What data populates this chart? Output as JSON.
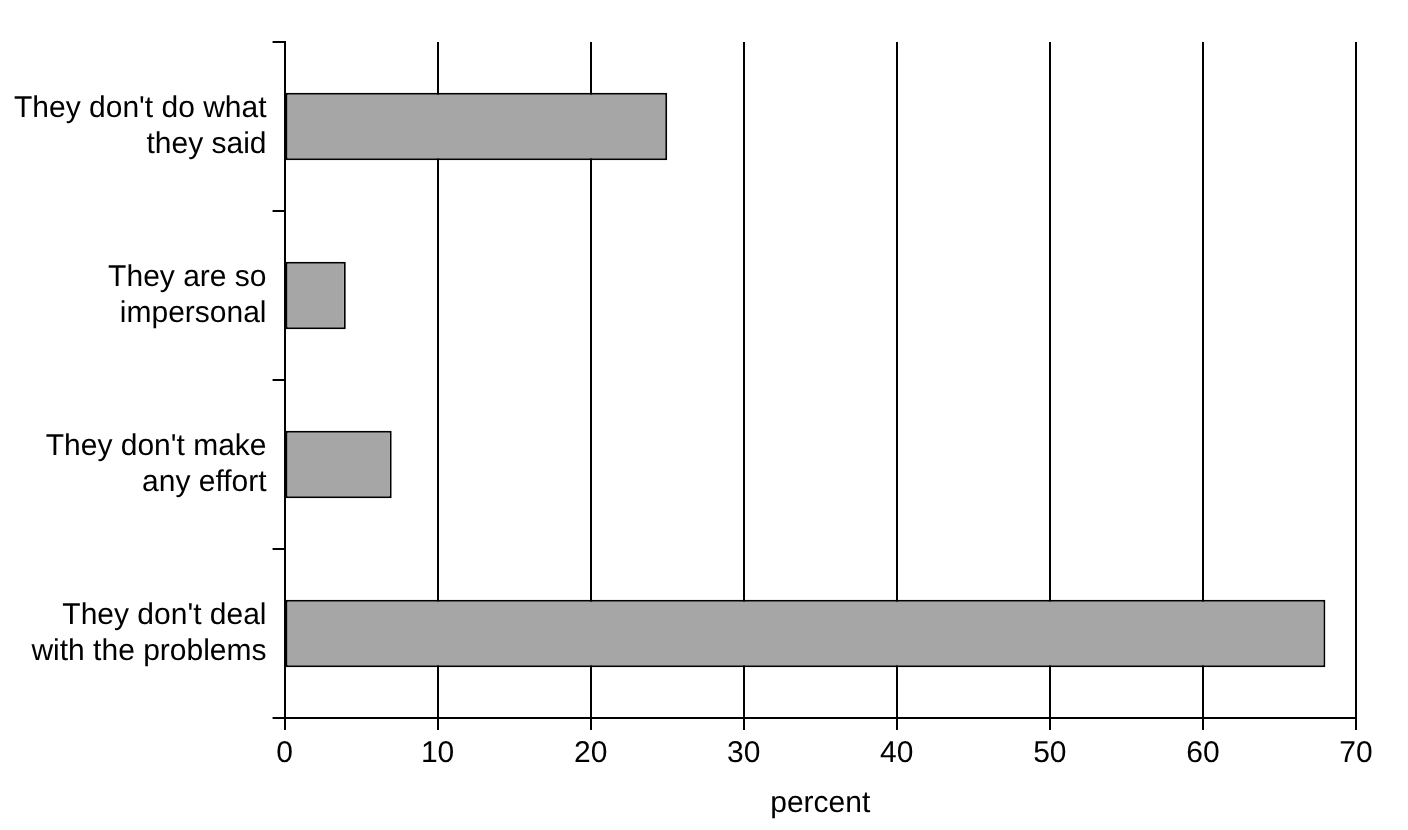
{
  "chart_data": {
    "type": "bar",
    "orientation": "horizontal",
    "categories": [
      "They don't do what they said",
      "They are so impersonal",
      "They don't make any effort",
      "They don't deal with the problems"
    ],
    "values": [
      25,
      4,
      7,
      68
    ],
    "color": "#a6a6a6",
    "xlabel": "percent",
    "xlim": [
      0,
      70
    ],
    "xticks": [
      0,
      10,
      20,
      30,
      40,
      50,
      60,
      70
    ],
    "grid": "x"
  }
}
